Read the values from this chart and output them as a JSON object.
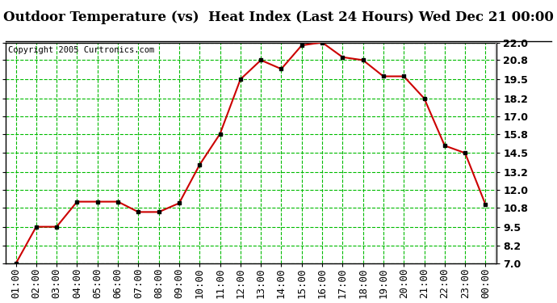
{
  "title": "Outdoor Temperature (vs)  Heat Index (Last 24 Hours) Wed Dec 21 00:00",
  "copyright": "Copyright 2005 Curtronics.com",
  "x_labels": [
    "01:00",
    "02:00",
    "03:00",
    "04:00",
    "05:00",
    "06:00",
    "07:00",
    "08:00",
    "09:00",
    "10:00",
    "11:00",
    "12:00",
    "13:00",
    "14:00",
    "15:00",
    "16:00",
    "17:00",
    "18:00",
    "19:00",
    "20:00",
    "21:00",
    "22:00",
    "23:00",
    "00:00"
  ],
  "y_values": [
    7.0,
    9.5,
    9.5,
    11.2,
    11.2,
    11.2,
    10.5,
    10.5,
    11.1,
    13.7,
    15.8,
    19.5,
    20.8,
    20.2,
    21.8,
    22.0,
    21.0,
    20.8,
    19.7,
    19.7,
    18.2,
    15.0,
    14.5,
    11.0
  ],
  "ylim_min": 7.0,
  "ylim_max": 22.0,
  "y_ticks": [
    7.0,
    8.2,
    9.5,
    10.8,
    12.0,
    13.2,
    14.5,
    15.8,
    17.0,
    18.2,
    19.5,
    20.8,
    22.0
  ],
  "line_color": "#cc0000",
  "marker_color": "#000000",
  "bg_color": "#ffffff",
  "grid_color": "#00bb00",
  "border_color": "#000000",
  "title_fontsize": 12,
  "tick_fontsize": 9,
  "copyright_fontsize": 7.5
}
